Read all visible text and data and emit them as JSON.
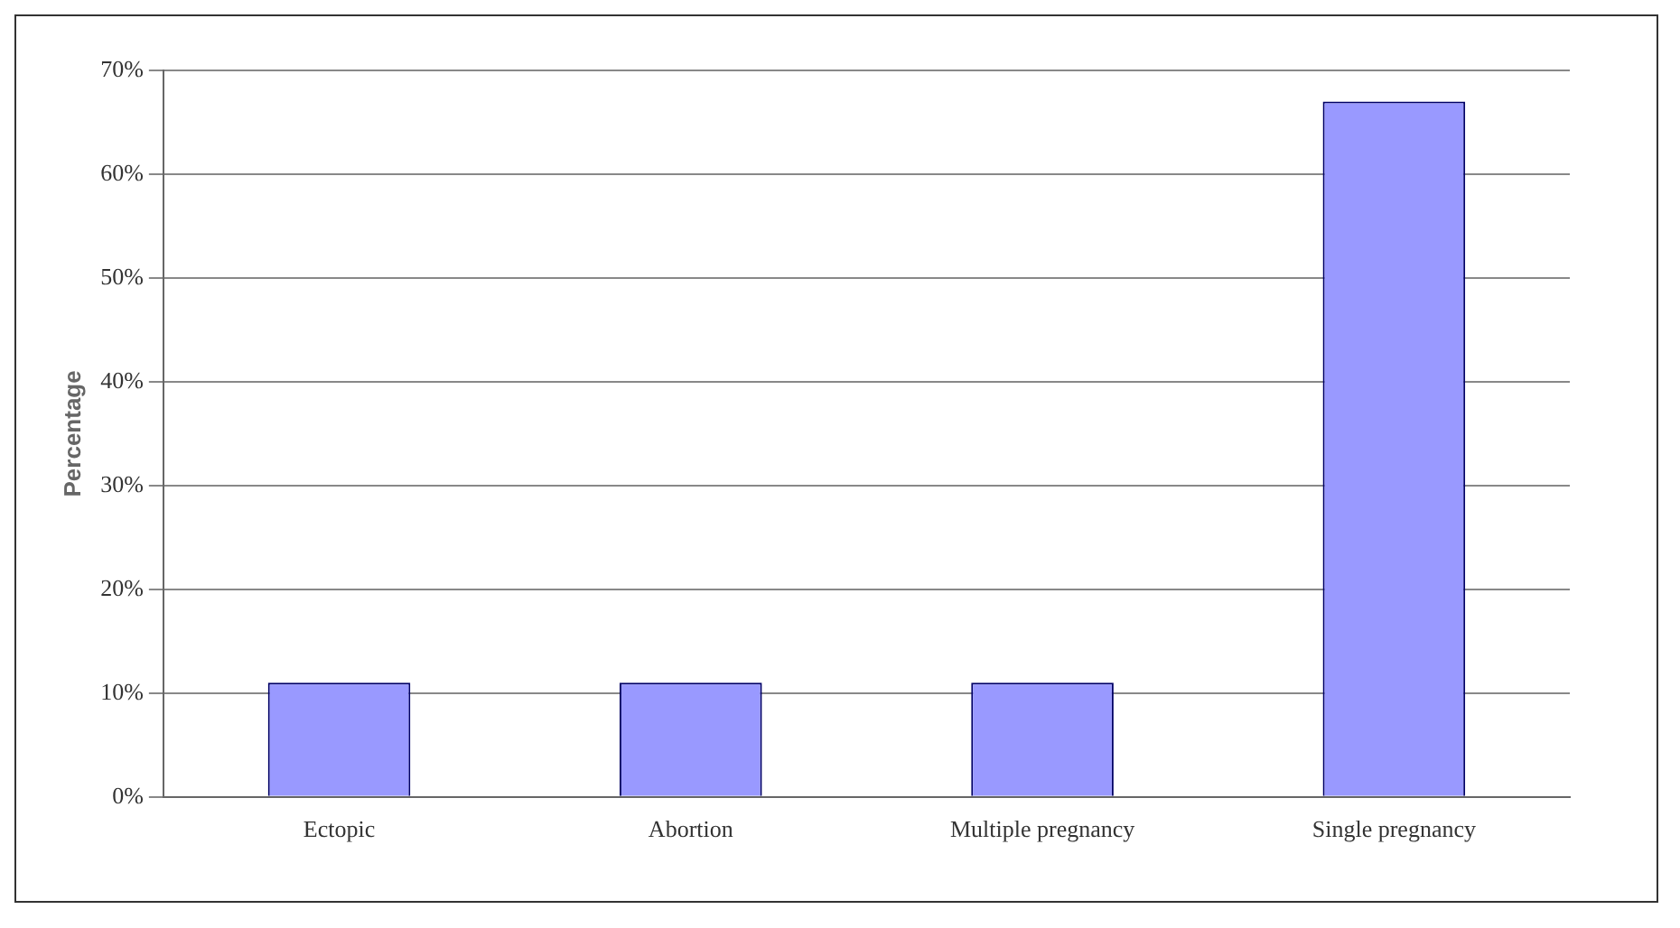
{
  "chart_data": {
    "type": "bar",
    "ylabel": "Percentage",
    "categories": [
      "Ectopic",
      "Abortion",
      "Multiple pregnancy",
      "Single pregnancy"
    ],
    "values": [
      11,
      11,
      11,
      67
    ],
    "color": "#9999ff",
    "ylim": [
      0,
      70
    ],
    "yticks": [
      {
        "value": 0,
        "label": "0%"
      },
      {
        "value": 10,
        "label": "10%"
      },
      {
        "value": 20,
        "label": "20%"
      },
      {
        "value": 30,
        "label": "30%"
      },
      {
        "value": 40,
        "label": "40%"
      },
      {
        "value": 50,
        "label": "50%"
      },
      {
        "value": 60,
        "label": "60%"
      },
      {
        "value": 70,
        "label": "70%"
      }
    ],
    "grid": "y",
    "legend": false
  }
}
